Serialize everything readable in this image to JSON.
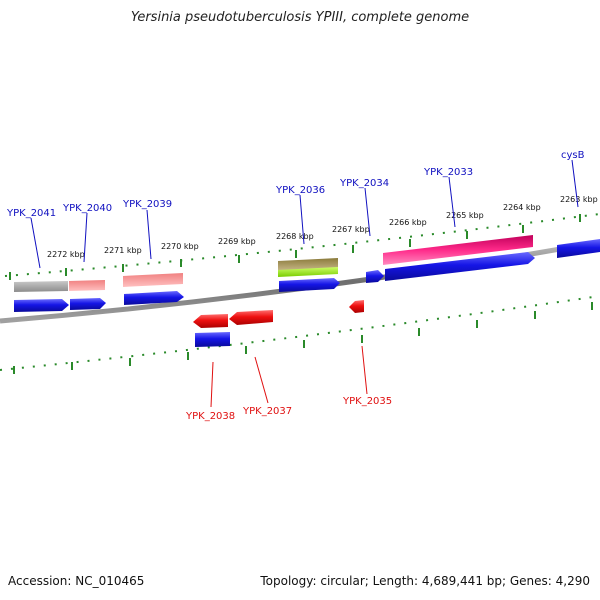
{
  "title": "Yersinia pseudotuberculosis YPIII, complete genome",
  "footer": {
    "accession": "Accession: NC_010465",
    "topology": "Topology: circular; Length: 4,689,441 bp; Genes: 4,290"
  },
  "scale_labels": [
    "2272 kbp",
    "2271 kbp",
    "2270 kbp",
    "2269 kbp",
    "2268 kbp",
    "2267 kbp",
    "2266 kbp",
    "2265 kbp",
    "2264 kbp",
    "2263 kbp"
  ],
  "genes": {
    "forward": [
      "YPK_2041",
      "YPK_2040",
      "YPK_2039",
      "YPK_2036",
      "YPK_2034",
      "YPK_2033",
      "cysB"
    ],
    "reverse": [
      "YPK_2038",
      "YPK_2037",
      "YPK_2035"
    ]
  },
  "colors": {
    "forward_label": "#1010c0",
    "reverse_label": "#e01010",
    "tick": "#2a8a2a",
    "cds_blue": "#1515e6",
    "cds_red": "#ee1010",
    "backbone": "#808080"
  }
}
